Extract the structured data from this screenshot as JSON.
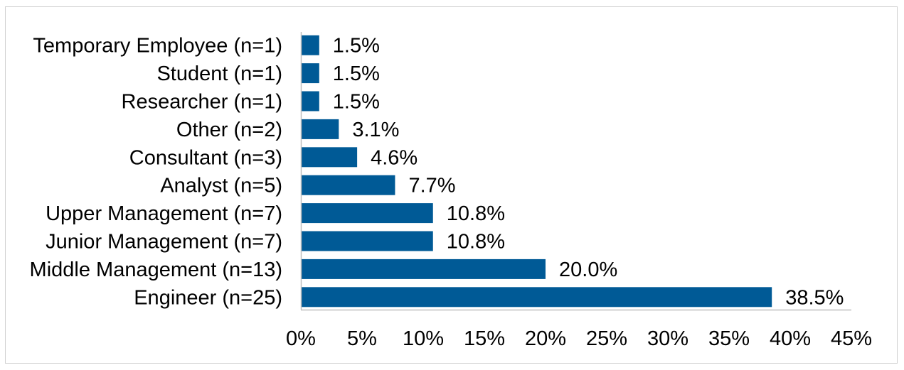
{
  "chart_data": {
    "type": "bar",
    "orientation": "horizontal",
    "categories": [
      "Temporary Employee (n=1)",
      "Student (n=1)",
      "Researcher (n=1)",
      "Other (n=2)",
      "Consultant (n=3)",
      "Analyst (n=5)",
      "Upper Management (n=7)",
      "Junior Management (n=7)",
      "Middle Management (n=13)",
      "Engineer (n=25)"
    ],
    "values": [
      1.5,
      1.5,
      1.5,
      3.1,
      4.6,
      7.7,
      10.8,
      10.8,
      20.0,
      38.5
    ],
    "value_labels": [
      "1.5%",
      "1.5%",
      "1.5%",
      "3.1%",
      "4.6%",
      "7.7%",
      "10.8%",
      "10.8%",
      "20.0%",
      "38.5%"
    ],
    "x_ticks": [
      "0%",
      "5%",
      "10%",
      "15%",
      "20%",
      "25%",
      "30%",
      "35%",
      "40%",
      "45%"
    ],
    "xlim": [
      0,
      45
    ],
    "grid": false,
    "bar_color": "#005a96",
    "axis_color": "#bfbfbf"
  }
}
